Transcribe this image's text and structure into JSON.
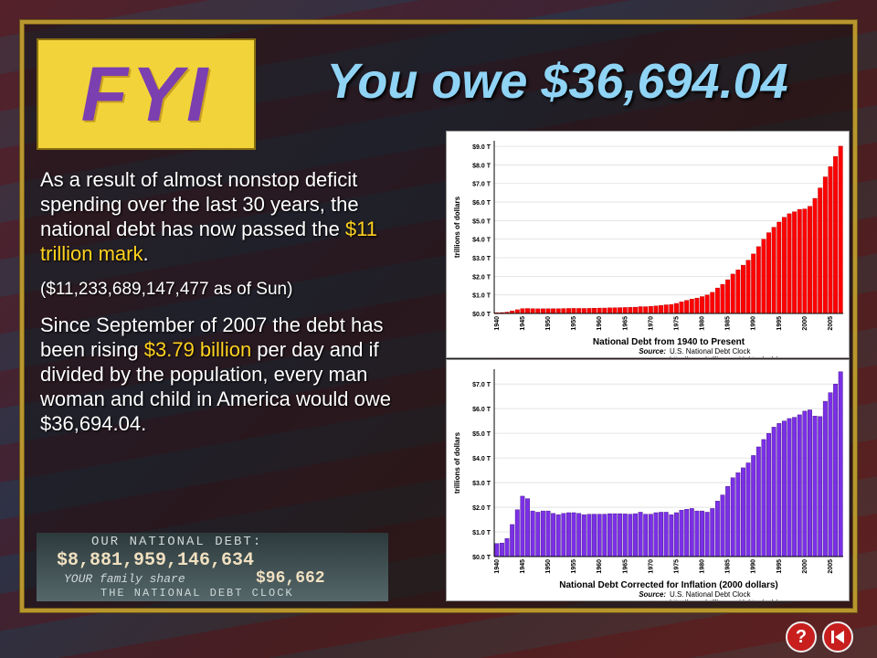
{
  "logo": "FYI",
  "title": "You owe $36,694.04",
  "paragraphs": [
    [
      {
        "text": "As a result of almost nonstop deficit spending over the last 30 years, the national debt has now passed the "
      },
      {
        "text": "$11 trillion mark",
        "highlight": true
      },
      {
        "text": "."
      }
    ],
    [
      {
        "text": "($11,233,689,147,477 as of Sun)"
      }
    ],
    [
      {
        "text": "Since September of 2007 the debt has been rising "
      },
      {
        "text": "$3.79 billion",
        "highlight": true
      },
      {
        "text": " per day and if divided by the population, every man woman and child in America would owe $36,694.04."
      }
    ]
  ],
  "debt_clock": {
    "heading": "OUR NATIONAL DEBT:",
    "debt": "$8,881,959,146,634",
    "share_label": "YOUR family share",
    "share": "$96,662",
    "footer": "THE NATIONAL DEBT CLOCK"
  },
  "buttons": {
    "help": "?"
  },
  "chart_data": [
    {
      "type": "bar",
      "title": "National Debt from 1940 to Present",
      "y_label": "trillions of dollars",
      "source_label": "Source:",
      "source": "U.S. National Debt Clock",
      "url": "http://www.brillig.com/debt_clock/",
      "color": "#ff0000",
      "edge": "#b00000",
      "grid": true,
      "categories": [
        "1940",
        null,
        null,
        null,
        null,
        "1945",
        null,
        null,
        null,
        null,
        "1950",
        null,
        null,
        null,
        null,
        "1955",
        null,
        null,
        null,
        null,
        "1960",
        null,
        null,
        null,
        null,
        "1965",
        null,
        null,
        null,
        null,
        "1970",
        null,
        null,
        null,
        null,
        "1975",
        null,
        null,
        null,
        null,
        "1980",
        null,
        null,
        null,
        null,
        "1985",
        null,
        null,
        null,
        null,
        "1990",
        null,
        null,
        null,
        null,
        "1995",
        null,
        null,
        null,
        null,
        "2000",
        null,
        null,
        null,
        null,
        "2005",
        null,
        null
      ],
      "values": [
        0.043,
        0.049,
        0.072,
        0.137,
        0.201,
        0.259,
        0.269,
        0.258,
        0.252,
        0.253,
        0.257,
        0.255,
        0.259,
        0.266,
        0.271,
        0.274,
        0.273,
        0.271,
        0.276,
        0.285,
        0.291,
        0.293,
        0.303,
        0.31,
        0.316,
        0.322,
        0.328,
        0.34,
        0.368,
        0.366,
        0.381,
        0.408,
        0.436,
        0.466,
        0.484,
        0.542,
        0.629,
        0.706,
        0.777,
        0.829,
        0.909,
        0.995,
        1.137,
        1.372,
        1.565,
        1.817,
        2.121,
        2.346,
        2.601,
        2.868,
        3.206,
        3.598,
        4.002,
        4.351,
        4.643,
        4.921,
        5.182,
        5.369,
        5.478,
        5.606,
        5.629,
        5.77,
        6.198,
        6.76,
        7.355,
        7.905,
        8.451,
        9.008
      ],
      "ylim": [
        0,
        9.3
      ],
      "yticks": [
        {
          "value": 0,
          "label": "$0.0 T"
        },
        {
          "value": 1,
          "label": "$1.0 T"
        },
        {
          "value": 2,
          "label": "$2.0 T"
        },
        {
          "value": 3,
          "label": "$3.0 T"
        },
        {
          "value": 4,
          "label": "$4.0 T"
        },
        {
          "value": 5,
          "label": "$5.0 T"
        },
        {
          "value": 6,
          "label": "$6.0 T"
        },
        {
          "value": 7,
          "label": "$7.0 T"
        },
        {
          "value": 8,
          "label": "$8.0 T"
        },
        {
          "value": 9,
          "label": "$9.0 T"
        }
      ]
    },
    {
      "type": "bar",
      "title": "National Debt Corrected for Inflation (2000 dollars)",
      "y_label": "trillions of dollars",
      "source_label": "Source:",
      "source": "U.S. National Debt Clock",
      "url": "http://www.brillig.com/debt_clock/",
      "color": "#7b2fe6",
      "edge": "#3d1280",
      "grid": true,
      "categories": [
        "1940",
        null,
        null,
        null,
        null,
        "1945",
        null,
        null,
        null,
        null,
        "1950",
        null,
        null,
        null,
        null,
        "1955",
        null,
        null,
        null,
        null,
        "1960",
        null,
        null,
        null,
        null,
        "1965",
        null,
        null,
        null,
        null,
        "1970",
        null,
        null,
        null,
        null,
        "1975",
        null,
        null,
        null,
        null,
        "1980",
        null,
        null,
        null,
        null,
        "1985",
        null,
        null,
        null,
        null,
        "1990",
        null,
        null,
        null,
        null,
        "1995",
        null,
        null,
        null,
        null,
        "2000",
        null,
        null,
        null,
        null,
        "2005",
        null,
        null
      ],
      "values": [
        0.53,
        0.55,
        0.73,
        1.3,
        1.9,
        2.45,
        2.35,
        1.85,
        1.8,
        1.85,
        1.85,
        1.75,
        1.7,
        1.75,
        1.78,
        1.78,
        1.75,
        1.7,
        1.72,
        1.72,
        1.72,
        1.72,
        1.74,
        1.74,
        1.74,
        1.73,
        1.72,
        1.74,
        1.8,
        1.72,
        1.72,
        1.78,
        1.8,
        1.8,
        1.7,
        1.78,
        1.88,
        1.92,
        1.95,
        1.85,
        1.85,
        1.8,
        1.95,
        2.25,
        2.5,
        2.85,
        3.2,
        3.4,
        3.6,
        3.8,
        4.1,
        4.45,
        4.75,
        5.0,
        5.25,
        5.4,
        5.5,
        5.6,
        5.65,
        5.75,
        5.9,
        5.95,
        5.7,
        5.68,
        6.3,
        6.65,
        7.0,
        7.5
      ],
      "ylim": [
        0,
        7.6
      ],
      "yticks": [
        {
          "value": 0,
          "label": "$0.0 T"
        },
        {
          "value": 1,
          "label": "$1.0 T"
        },
        {
          "value": 2,
          "label": "$2.0 T"
        },
        {
          "value": 3,
          "label": "$3.0 T"
        },
        {
          "value": 4,
          "label": "$4.0 T"
        },
        {
          "value": 5,
          "label": "$5.0 T"
        },
        {
          "value": 6,
          "label": "$6.0 T"
        },
        {
          "value": 7,
          "label": "$7.0 T"
        }
      ]
    }
  ]
}
